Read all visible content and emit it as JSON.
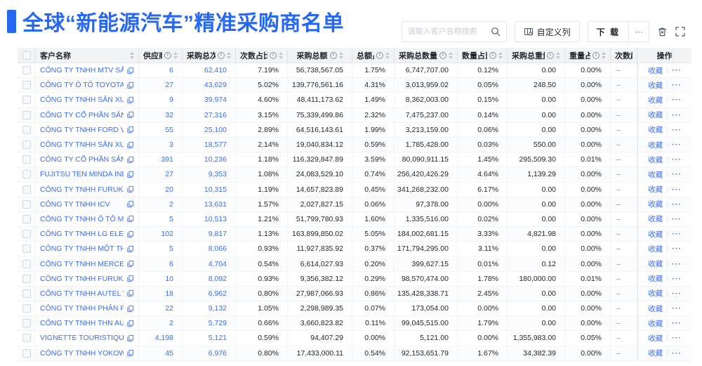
{
  "page": {
    "title": "全球“新能源汽车”精准采购商名单"
  },
  "toolbar": {
    "search_placeholder": "请输入客户名称搜索",
    "customize_columns": "自定义列",
    "download": "下 载",
    "more": "···"
  },
  "colors": {
    "accent": "#2568f2",
    "link": "#3d6ef2"
  },
  "table": {
    "columns": [
      {
        "key": "checkbox",
        "label": ""
      },
      {
        "key": "name",
        "label": "客户名称",
        "sort": true
      },
      {
        "key": "supplier",
        "label": "供应商",
        "info": true,
        "sort": true
      },
      {
        "key": "times",
        "label": "采购总次数",
        "info": true,
        "sort": true
      },
      {
        "key": "times_pct",
        "label": "次数占比",
        "info": true,
        "sort": true
      },
      {
        "key": "amount",
        "label": "采购总额",
        "info": true,
        "sort": true
      },
      {
        "key": "amount_pct",
        "label": "总额占比",
        "info": true,
        "sort": true
      },
      {
        "key": "qty",
        "label": "采购总数量",
        "info": true,
        "sort": true
      },
      {
        "key": "qty_pct",
        "label": "数量占比",
        "info": true,
        "sort": true
      },
      {
        "key": "weight",
        "label": "采购总重量",
        "info": true,
        "sort": true
      },
      {
        "key": "weight_pct",
        "label": "重量占比",
        "info": true,
        "sort": true
      },
      {
        "key": "trend",
        "label": "次数趋势"
      },
      {
        "key": "actions",
        "label": "操作"
      }
    ],
    "actions": {
      "favorite": "收藏",
      "more": "···"
    },
    "rows": [
      {
        "name": "CÔNG TY TNHH MTV SẢN XUẤ...",
        "supplier": "6",
        "times": "62,410",
        "times_pct": "7.19%",
        "amount": "56,738,567.05",
        "amount_pct": "1.75%",
        "qty": "6,747,707.00",
        "qty_pct": "0.12%",
        "weight": "0.00",
        "weight_pct": "0.00%",
        "trend": "–"
      },
      {
        "name": "CÔNG TY Ô TÔ TOYOTA VIỆT ...",
        "supplier": "27",
        "times": "43,629",
        "times_pct": "5.02%",
        "amount": "139,776,561.16",
        "amount_pct": "4.31%",
        "qty": "3,013,959.02",
        "qty_pct": "0.05%",
        "weight": "248.50",
        "weight_pct": "0.00%",
        "trend": "–"
      },
      {
        "name": "CÔNG TY TNHH SẢN XUẤT VÀ ...",
        "supplier": "9",
        "times": "39,974",
        "times_pct": "4.60%",
        "amount": "48,411,173.62",
        "amount_pct": "1.49%",
        "qty": "8,362,003.00",
        "qty_pct": "0.15%",
        "weight": "0.00",
        "weight_pct": "0.00%",
        "trend": "–"
      },
      {
        "name": "CÔNG TY CỔ PHẦN SẢN XUẤT...",
        "supplier": "32",
        "times": "27,316",
        "times_pct": "3.15%",
        "amount": "75,339,499.86",
        "amount_pct": "2.32%",
        "qty": "7,475,237.00",
        "qty_pct": "0.14%",
        "weight": "0.00",
        "weight_pct": "0.00%",
        "trend": "–"
      },
      {
        "name": "CÔNG TY TNHH FORD VIỆT NAM",
        "supplier": "55",
        "times": "25,100",
        "times_pct": "2.89%",
        "amount": "64,516,143.61",
        "amount_pct": "1.99%",
        "qty": "3,213,159.00",
        "qty_pct": "0.06%",
        "weight": "0.00",
        "weight_pct": "0.00%",
        "trend": "–"
      },
      {
        "name": "CÔNG TY TNHH SẢN XUẤT VÀ ...",
        "supplier": "3",
        "times": "18,577",
        "times_pct": "2.14%",
        "amount": "19,040,834.12",
        "amount_pct": "0.59%",
        "qty": "1,785,428.00",
        "qty_pct": "0.03%",
        "weight": "550.00",
        "weight_pct": "0.00%",
        "trend": "–"
      },
      {
        "name": "CÔNG TY CỔ PHẦN SẢN XUẤT...",
        "supplier": "391",
        "times": "10,236",
        "times_pct": "1.18%",
        "amount": "116,329,847.89",
        "amount_pct": "3.59%",
        "qty": "80,090,911.15",
        "qty_pct": "1.45%",
        "weight": "295,509.30",
        "weight_pct": "0.01%",
        "trend": "–"
      },
      {
        "name": "FUJITSU TEN MINDA INDIA PVT...",
        "supplier": "27",
        "times": "9,353",
        "times_pct": "1.08%",
        "amount": "24,083,529.10",
        "amount_pct": "0.74%",
        "qty": "256,420,426.29",
        "qty_pct": "4.64%",
        "weight": "1,139.29",
        "weight_pct": "0.00%",
        "trend": "–"
      },
      {
        "name": "CÔNG TY TNHH FURUKAWA A...",
        "supplier": "20",
        "times": "10,315",
        "times_pct": "1.19%",
        "amount": "14,657,823.89",
        "amount_pct": "0.45%",
        "qty": "341,268,232.00",
        "qty_pct": "6.17%",
        "weight": "0.00",
        "weight_pct": "0.00%",
        "trend": "–"
      },
      {
        "name": "CÔNG TY TNHH ICV",
        "supplier": "2",
        "times": "13,631",
        "times_pct": "1.57%",
        "amount": "2,027,827.15",
        "amount_pct": "0.06%",
        "qty": "97,378.00",
        "qty_pct": "0.00%",
        "weight": "0.00",
        "weight_pct": "0.00%",
        "trend": "–"
      },
      {
        "name": "CÔNG TY TNHH Ô TÔ MITSUBI...",
        "supplier": "5",
        "times": "10,513",
        "times_pct": "1.21%",
        "amount": "51,799,780.93",
        "amount_pct": "1.60%",
        "qty": "1,335,516.00",
        "qty_pct": "0.02%",
        "weight": "0.00",
        "weight_pct": "0.00%",
        "trend": "–"
      },
      {
        "name": "CÔNG TY TNHH LG ELECTRON...",
        "supplier": "102",
        "times": "9,817",
        "times_pct": "1.13%",
        "amount": "163,899,850.02",
        "amount_pct": "5.05%",
        "qty": "184,002,681.15",
        "qty_pct": "3.33%",
        "weight": "4,821.98",
        "weight_pct": "0.00%",
        "trend": "–"
      },
      {
        "name": "CÔNG TY TNHH MỘT THÀNH V...",
        "supplier": "5",
        "times": "8,066",
        "times_pct": "0.93%",
        "amount": "11,927,835.92",
        "amount_pct": "0.37%",
        "qty": "171,794,295.00",
        "qty_pct": "3.11%",
        "weight": "0.00",
        "weight_pct": "0.00%",
        "trend": "–"
      },
      {
        "name": "CÔNG TY TNHH MERCEDES-B...",
        "supplier": "6",
        "times": "4,704",
        "times_pct": "0.54%",
        "amount": "6,614,027.93",
        "amount_pct": "0.20%",
        "qty": "399,627.15",
        "qty_pct": "0.01%",
        "weight": "0.12",
        "weight_pct": "0.00%",
        "trend": "–"
      },
      {
        "name": "CÔNG TY TNHH FURUKAWA A...",
        "supplier": "10",
        "times": "8,092",
        "times_pct": "0.93%",
        "amount": "9,356,382.12",
        "amount_pct": "0.29%",
        "qty": "98,570,474.00",
        "qty_pct": "1.78%",
        "weight": "180,000.00",
        "weight_pct": "0.01%",
        "trend": "–"
      },
      {
        "name": "CÔNG TY TNHH AUTEL VIỆT N...",
        "supplier": "18",
        "times": "6,962",
        "times_pct": "0.80%",
        "amount": "27,987,066.93",
        "amount_pct": "0.86%",
        "qty": "135,428,338.71",
        "qty_pct": "2.45%",
        "weight": "0.00",
        "weight_pct": "0.00%",
        "trend": "–"
      },
      {
        "name": "CÔNG TY TNHH PHÂN PHỐI T...",
        "supplier": "22",
        "times": "9,132",
        "times_pct": "1.05%",
        "amount": "2,298,989.35",
        "amount_pct": "0.07%",
        "qty": "173,054.00",
        "qty_pct": "0.00%",
        "weight": "0.00",
        "weight_pct": "0.00%",
        "trend": "–"
      },
      {
        "name": "CÔNG TY TNHH THN AUTOPAR...",
        "supplier": "2",
        "times": "5,729",
        "times_pct": "0.66%",
        "amount": "3,660,823.82",
        "amount_pct": "0.11%",
        "qty": "99,045,515.00",
        "qty_pct": "1.79%",
        "weight": "0.00",
        "weight_pct": "0.00%",
        "trend": "–"
      },
      {
        "name": "VIGNETTE TOURISTIQUE G UNI...",
        "supplier": "4,198",
        "times": "5,121",
        "times_pct": "0.59%",
        "amount": "94,407.29",
        "amount_pct": "0.00%",
        "qty": "5,121.00",
        "qty_pct": "0.00%",
        "weight": "1,355,983.00",
        "weight_pct": "0.05%",
        "trend": "–"
      },
      {
        "name": "CÔNG TY TNHH YOKOWO VIỆT...",
        "supplier": "45",
        "times": "6,976",
        "times_pct": "0.80%",
        "amount": "17,433,000.11",
        "amount_pct": "0.54%",
        "qty": "92,153,651.79",
        "qty_pct": "1.67%",
        "weight": "34,382.39",
        "weight_pct": "0.00%",
        "trend": "–"
      }
    ]
  }
}
